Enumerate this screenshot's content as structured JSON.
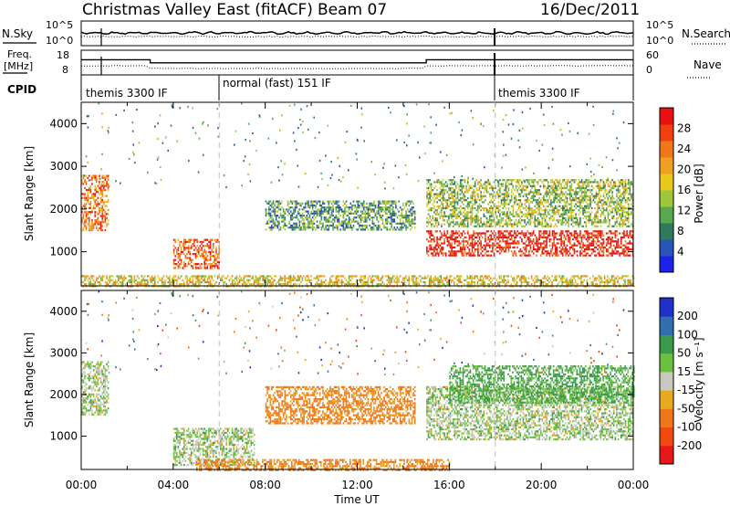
{
  "header": {
    "station": "Christmas Valley East (fitACF)",
    "beam": "Beam 07",
    "date": "16/Dec/2011"
  },
  "params": {
    "nsky_label": "N.Sky",
    "nsearch_label": "N.Search",
    "freq_label_1": "Freq.",
    "freq_label_2": "[MHz]",
    "nave_label": "Nave",
    "cpid_label": "CPID",
    "noise_left_ticks": [
      "10^5",
      "10^0"
    ],
    "noise_right_ticks": [
      "10^5",
      "10^0"
    ],
    "freq_ticks": [
      "18",
      "8"
    ],
    "nave_ticks": [
      "60",
      "0"
    ],
    "cpid_segments": [
      {
        "label": "themis 3300 IF",
        "start": 0,
        "end": 6
      },
      {
        "label": "normal (fast) 151 IF",
        "start": 6,
        "end": 18
      },
      {
        "label": "themis 3300 IF",
        "start": 18,
        "end": 24
      }
    ],
    "freq_series_mhz": [
      {
        "t": 0,
        "v": 16
      },
      {
        "t": 3,
        "v": 16
      },
      {
        "t": 3,
        "v": 14
      },
      {
        "t": 15,
        "v": 14
      },
      {
        "t": 15,
        "v": 16
      },
      {
        "t": 24,
        "v": 16
      }
    ]
  },
  "axes": {
    "ylabel": "Slant Range [km]",
    "xlabel": "Time UT",
    "xticks": [
      "00:00",
      "04:00",
      "08:00",
      "12:00",
      "16:00",
      "20:00",
      "00:00"
    ],
    "yticks": [
      "1000",
      "2000",
      "3000",
      "4000"
    ]
  },
  "colorbars": {
    "power": {
      "label": "Power [dB]",
      "ticks": [
        "4",
        "8",
        "12",
        "16",
        "20",
        "24",
        "28"
      ],
      "colors": [
        "#1e22e8",
        "#2a55b8",
        "#2f7a5a",
        "#5aa84e",
        "#9ec83a",
        "#e8c81a",
        "#f0a020",
        "#f07818",
        "#f04010",
        "#e81010"
      ]
    },
    "velocity": {
      "label": "Velocity [m s⁻¹]",
      "ticks": [
        "200",
        "100",
        "50",
        "15",
        "-15",
        "-50",
        "-100",
        "-200"
      ],
      "colors": [
        "#2030c8",
        "#2f6fb0",
        "#3a9a4a",
        "#6cc040",
        "#c8c8c0",
        "#e8a820",
        "#f07818",
        "#f04a10",
        "#e81818"
      ]
    }
  },
  "chart_data": [
    {
      "type": "heatmap",
      "name": "Power",
      "xlabel": "Time UT",
      "ylabel": "Slant Range [km]",
      "xlim": [
        0,
        24
      ],
      "ylim": [
        200,
        4500
      ],
      "colorbar": {
        "label": "Power [dB]",
        "range": [
          0,
          32
        ]
      },
      "features": [
        {
          "t": [
            0.0,
            1.2
          ],
          "r": [
            1500,
            2800
          ],
          "power": 24
        },
        {
          "t": [
            4.0,
            6.0
          ],
          "r": [
            600,
            1300
          ],
          "power": 26
        },
        {
          "t": [
            8.0,
            14.5
          ],
          "r": [
            1500,
            2200
          ],
          "power": 10
        },
        {
          "t": [
            15.0,
            24.0
          ],
          "r": [
            900,
            1500
          ],
          "power": 30
        },
        {
          "t": [
            15.0,
            24.0
          ],
          "r": [
            1600,
            2700
          ],
          "power": 14
        },
        {
          "t": [
            0.0,
            24.0
          ],
          "r": [
            200,
            450
          ],
          "power": 18
        }
      ]
    },
    {
      "type": "heatmap",
      "name": "Velocity",
      "xlabel": "Time UT",
      "ylabel": "Slant Range [km]",
      "xlim": [
        0,
        24
      ],
      "ylim": [
        200,
        4500
      ],
      "colorbar": {
        "label": "Velocity [m s⁻¹]",
        "range": [
          -200,
          200
        ]
      },
      "features": [
        {
          "t": [
            0.0,
            1.2
          ],
          "r": [
            1500,
            2800
          ],
          "velocity": 0
        },
        {
          "t": [
            4.0,
            7.5
          ],
          "r": [
            300,
            1200
          ],
          "velocity": 0
        },
        {
          "t": [
            8.0,
            14.5
          ],
          "r": [
            1300,
            2200
          ],
          "velocity": -60
        },
        {
          "t": [
            15.0,
            24.0
          ],
          "r": [
            900,
            2200
          ],
          "velocity": 0
        },
        {
          "t": [
            16.0,
            24.0
          ],
          "r": [
            1800,
            2700
          ],
          "velocity": 20
        },
        {
          "t": [
            5.0,
            16.0
          ],
          "r": [
            200,
            450
          ],
          "velocity": -60
        }
      ]
    }
  ]
}
